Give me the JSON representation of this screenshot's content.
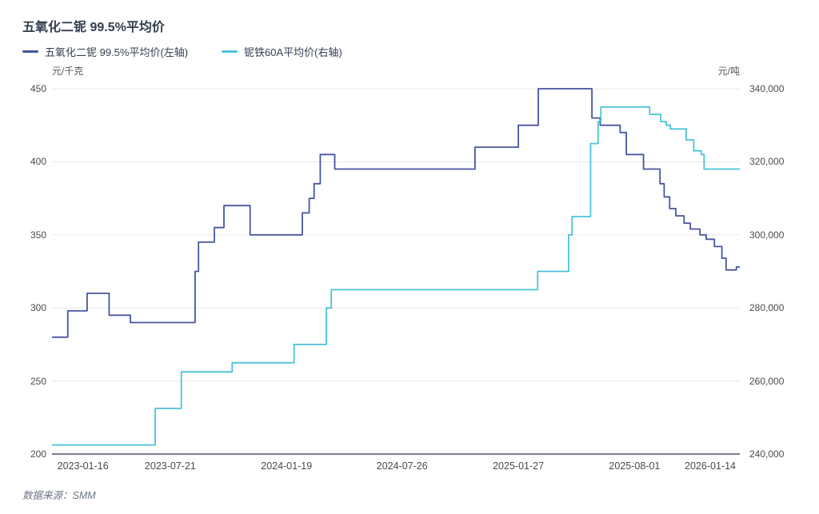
{
  "chart_data": {
    "type": "line",
    "subtype": "step",
    "title": "五氧化二铌 99.5%平均价",
    "source": "数据来源：SMM",
    "grid": true,
    "legend_position": "top-left",
    "colors": {
      "grid": "#e9e9e9",
      "axis_line": "#4d5668",
      "title": "#333f50",
      "tick_text": "#4a4a4a",
      "unit_text": "#595959",
      "source_text": "#6a7585"
    },
    "legend": [
      {
        "name": "五氧化二铌 99.5%平均价(左轴)",
        "color": "#4655a0",
        "axis": "left"
      },
      {
        "name": "铌铁60A平均价(右轴)",
        "color": "#49c3d9",
        "axis": "right"
      }
    ],
    "left_axis": {
      "unit": "元/千克",
      "min": 200,
      "max": 450,
      "ticks": [
        200,
        250,
        300,
        350,
        400,
        450
      ]
    },
    "right_axis": {
      "unit": "元/吨",
      "min": 240000,
      "max": 340000,
      "ticks": [
        240000,
        260000,
        280000,
        300000,
        320000,
        340000
      ]
    },
    "x_axis": {
      "labels": [
        "2023-01-16",
        "2023-07-21",
        "2024-01-19",
        "2024-07-26",
        "2025-01-27",
        "2025-08-01",
        "2026-01-14"
      ],
      "positions": [
        0.045,
        0.172,
        0.341,
        0.509,
        0.678,
        0.847,
        0.957
      ]
    },
    "series": [
      {
        "name": "五氧化二铌 99.5%平均价(左轴)",
        "axis": "left",
        "color": "#4655a0",
        "points": [
          [
            0.0,
            280
          ],
          [
            0.023,
            298
          ],
          [
            0.051,
            310
          ],
          [
            0.083,
            295
          ],
          [
            0.114,
            290
          ],
          [
            0.208,
            325
          ],
          [
            0.213,
            345
          ],
          [
            0.236,
            355
          ],
          [
            0.25,
            370
          ],
          [
            0.288,
            350
          ],
          [
            0.364,
            365
          ],
          [
            0.374,
            375
          ],
          [
            0.381,
            385
          ],
          [
            0.39,
            405
          ],
          [
            0.411,
            395
          ],
          [
            0.615,
            410
          ],
          [
            0.678,
            425
          ],
          [
            0.707,
            450
          ],
          [
            0.785,
            430
          ],
          [
            0.797,
            425
          ],
          [
            0.826,
            420
          ],
          [
            0.835,
            405
          ],
          [
            0.86,
            395
          ],
          [
            0.884,
            385
          ],
          [
            0.89,
            376
          ],
          [
            0.898,
            368
          ],
          [
            0.907,
            363
          ],
          [
            0.919,
            358
          ],
          [
            0.928,
            354
          ],
          [
            0.942,
            350
          ],
          [
            0.951,
            347
          ],
          [
            0.963,
            342
          ],
          [
            0.974,
            334
          ],
          [
            0.98,
            326
          ],
          [
            0.995,
            328
          ]
        ]
      },
      {
        "name": "铌铁60A平均价(右轴)",
        "axis": "right",
        "color": "#49c3d9",
        "points": [
          [
            0.0,
            242500
          ],
          [
            0.15,
            252500
          ],
          [
            0.188,
            262500
          ],
          [
            0.262,
            265000
          ],
          [
            0.352,
            270000
          ],
          [
            0.399,
            280000
          ],
          [
            0.406,
            285000
          ],
          [
            0.706,
            290000
          ],
          [
            0.751,
            300000
          ],
          [
            0.756,
            305000
          ],
          [
            0.783,
            325000
          ],
          [
            0.794,
            331000
          ],
          [
            0.798,
            335000
          ],
          [
            0.869,
            333000
          ],
          [
            0.885,
            331000
          ],
          [
            0.893,
            330000
          ],
          [
            0.899,
            329000
          ],
          [
            0.922,
            326000
          ],
          [
            0.933,
            323000
          ],
          [
            0.944,
            322000
          ],
          [
            0.948,
            318000
          ]
        ]
      }
    ]
  }
}
